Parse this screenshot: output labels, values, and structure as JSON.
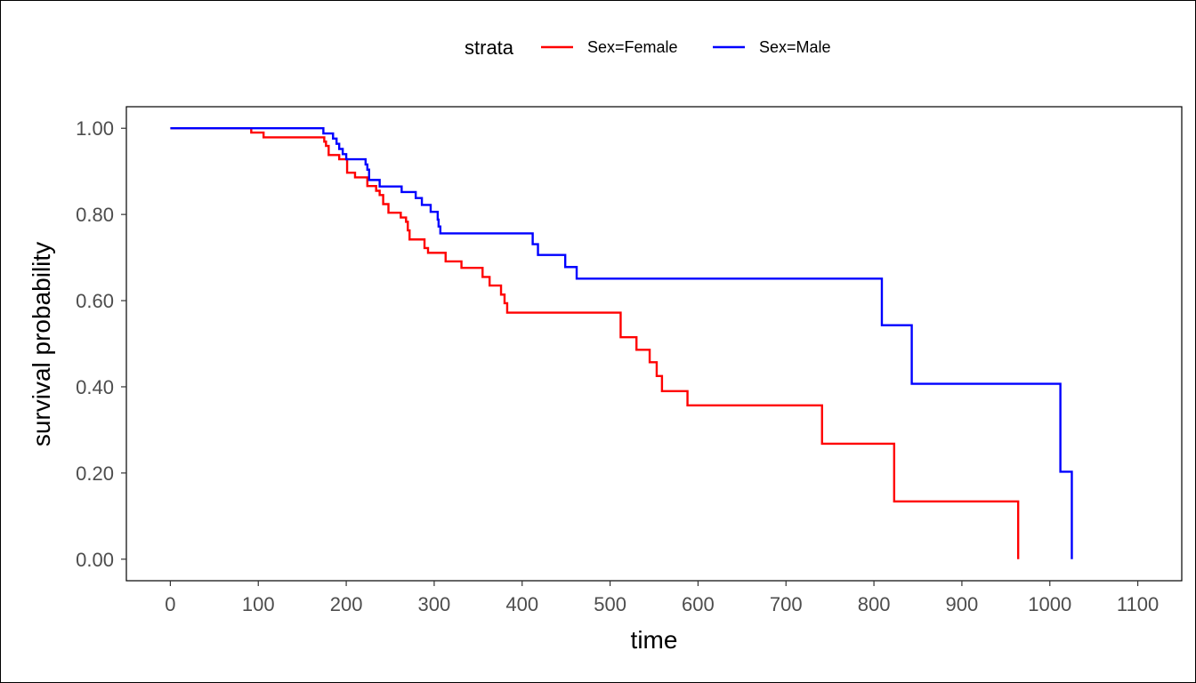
{
  "chart_data": {
    "type": "line",
    "step": true,
    "xlabel": "time",
    "ylabel": "survival probability",
    "xlim": [
      -50,
      1150
    ],
    "ylim": [
      -0.05,
      1.05
    ],
    "xticks": [
      0,
      100,
      200,
      300,
      400,
      500,
      600,
      700,
      800,
      900,
      1000,
      1100
    ],
    "xtick_labels": [
      "0",
      "100",
      "200",
      "300",
      "400",
      "500",
      "600",
      "700",
      "800",
      "900",
      "1000",
      "1100"
    ],
    "yticks": [
      0,
      0.2,
      0.4,
      0.6,
      0.8,
      1.0
    ],
    "ytick_labels": [
      "0.00",
      "0.20",
      "0.40",
      "0.60",
      "0.80",
      "1.00"
    ],
    "grid": false,
    "legend": {
      "title": "strata",
      "position": "top",
      "entries": [
        "Sex=Female",
        "Sex=Male"
      ]
    },
    "series": [
      {
        "name": "Sex=Female",
        "color": "#ff0000",
        "x": [
          0,
          92,
          106,
          175,
          177,
          180,
          192,
          201,
          210,
          224,
          234,
          238,
          242,
          248,
          262,
          268,
          270,
          272,
          276,
          289,
          293,
          313,
          331,
          355,
          363,
          376,
          380,
          383,
          512,
          530,
          545,
          553,
          559,
          588,
          741,
          823,
          964,
          964
        ],
        "y": [
          1.0,
          0.99,
          0.979,
          0.969,
          0.959,
          0.938,
          0.928,
          0.897,
          0.886,
          0.866,
          0.855,
          0.845,
          0.824,
          0.804,
          0.793,
          0.783,
          0.763,
          0.742,
          0.742,
          0.722,
          0.711,
          0.691,
          0.676,
          0.655,
          0.635,
          0.614,
          0.594,
          0.572,
          0.515,
          0.486,
          0.457,
          0.425,
          0.39,
          0.357,
          0.268,
          0.134,
          0.134,
          0.0
        ]
      },
      {
        "name": "Sex=Male",
        "color": "#0000ff",
        "x": [
          0,
          174,
          185,
          189,
          192,
          196,
          200,
          222,
          224,
          226,
          238,
          263,
          279,
          286,
          296,
          304,
          305,
          307,
          412,
          418,
          449,
          462,
          809,
          843,
          1012,
          1025,
          1025
        ],
        "y": [
          1.0,
          0.988,
          0.976,
          0.964,
          0.952,
          0.94,
          0.928,
          0.916,
          0.904,
          0.88,
          0.865,
          0.852,
          0.838,
          0.822,
          0.806,
          0.788,
          0.772,
          0.756,
          0.731,
          0.706,
          0.678,
          0.651,
          0.543,
          0.407,
          0.203,
          0.203,
          0.0
        ]
      }
    ]
  }
}
